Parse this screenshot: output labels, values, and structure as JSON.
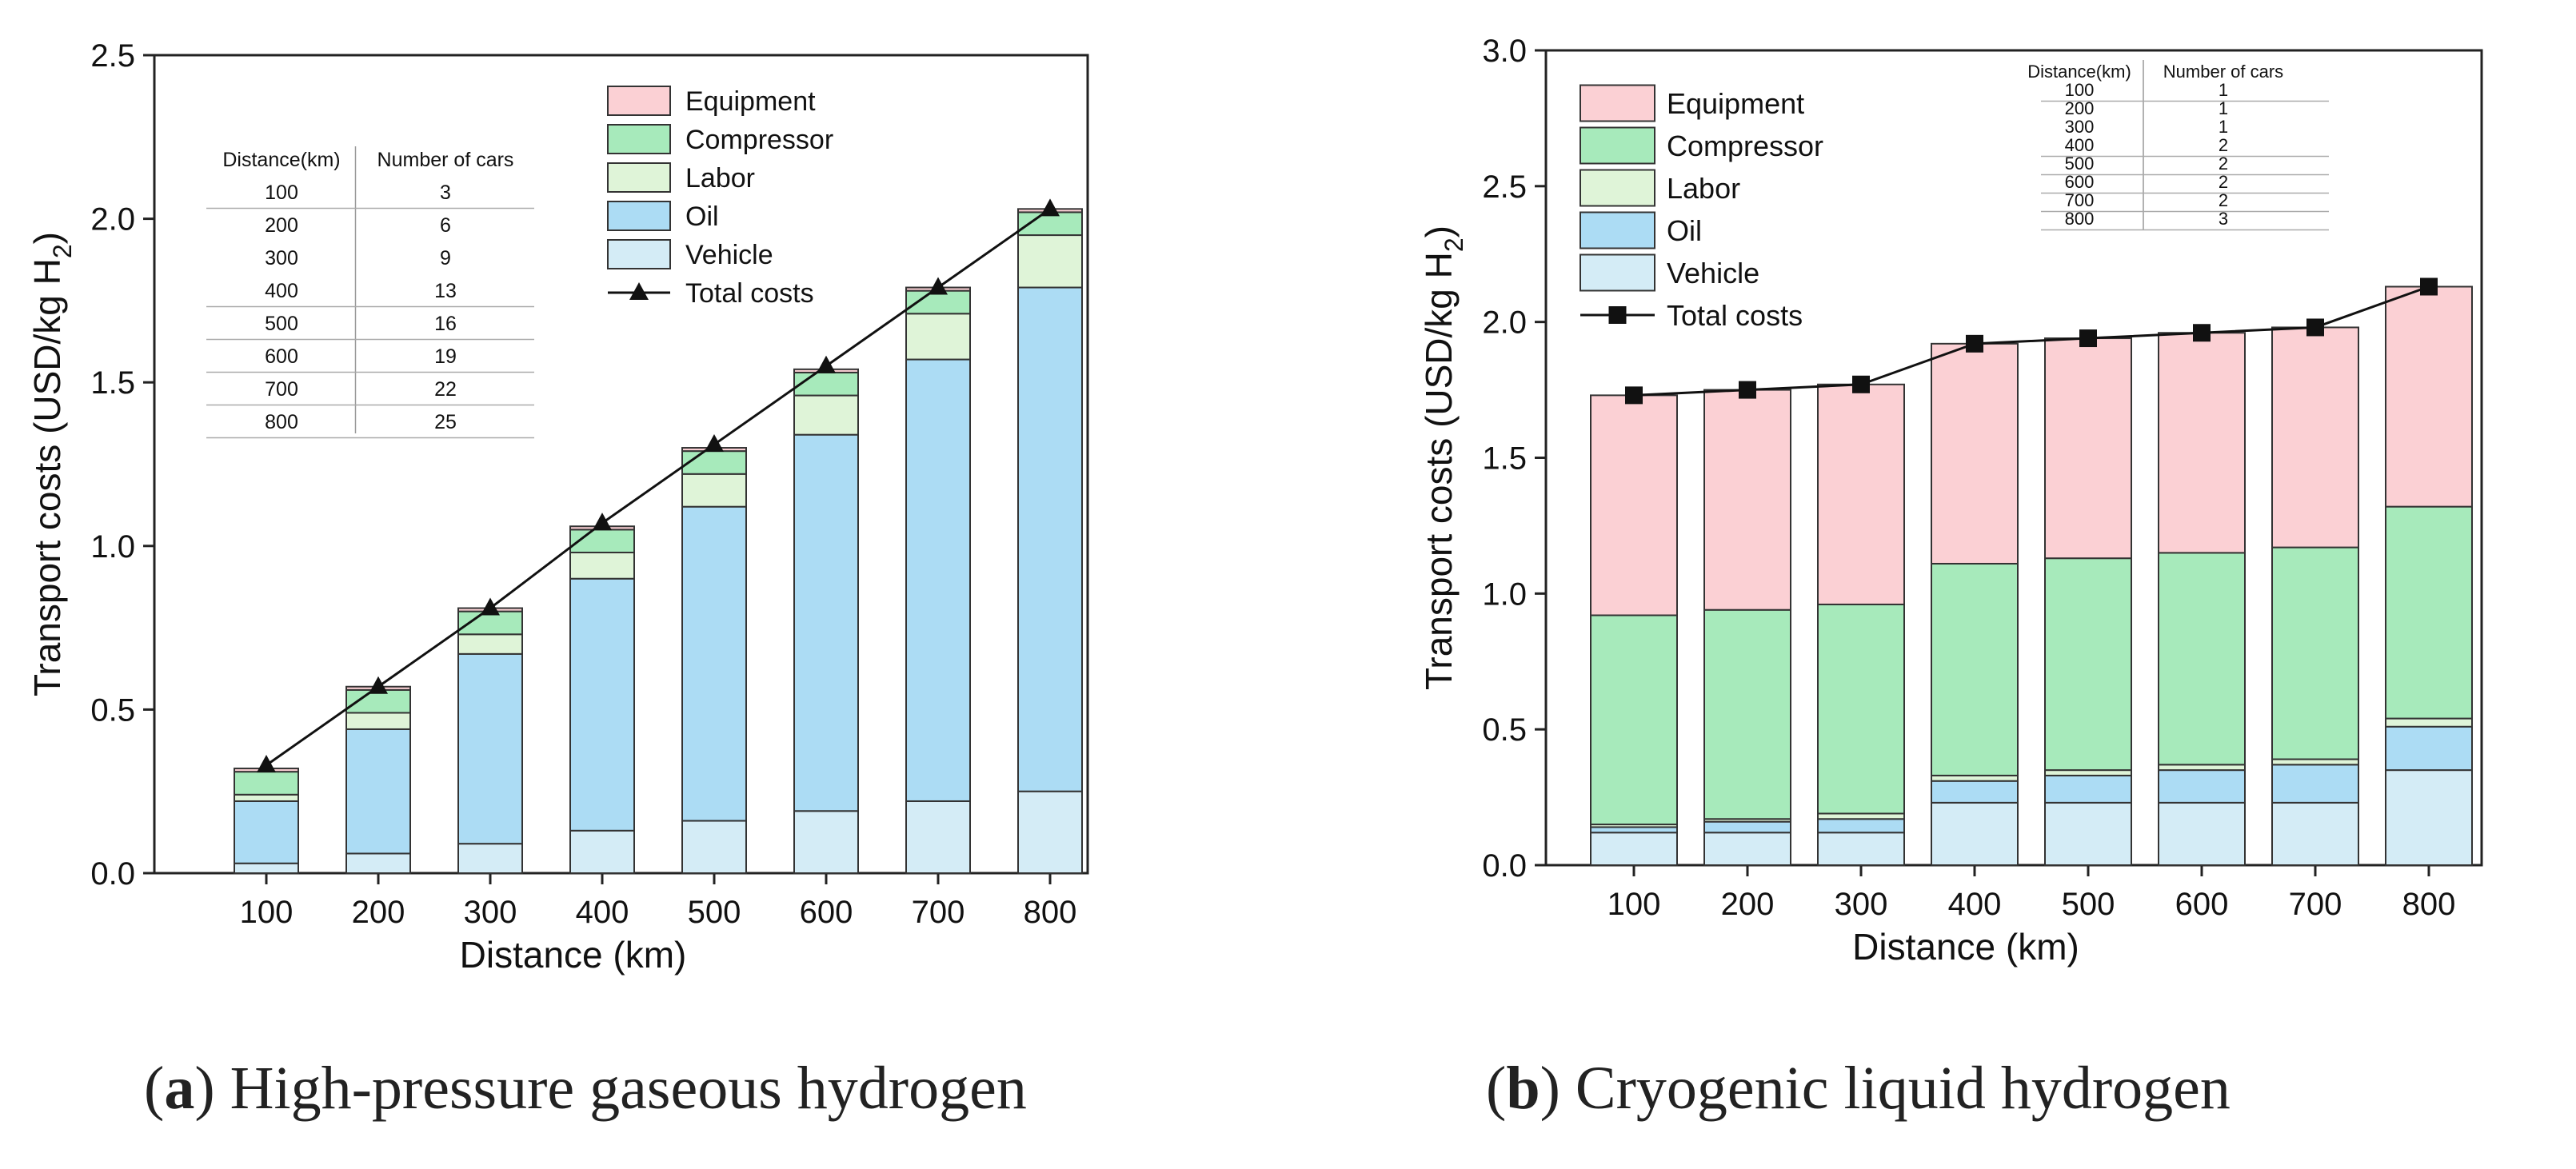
{
  "colors": {
    "equipment": "#fbd0d4",
    "compressor": "#a7eabb",
    "labor": "#dff4d8",
    "oil": "#acdcf4",
    "vehicle": "#d4ecf6",
    "line": "#111111",
    "axis": "#222222",
    "bar_edge": "#333333"
  },
  "chart_data": [
    {
      "id": "a",
      "type": "bar",
      "stacked": true,
      "title": "",
      "xlabel": "Distance (km)",
      "ylabel_main": "Transport costs (USD/kg H",
      "ylabel_sub": "2",
      "ylabel_close": ")",
      "ylim": [
        0,
        2.5
      ],
      "yticks": [
        "0.0",
        "0.5",
        "1.0",
        "1.5",
        "2.0",
        "2.5"
      ],
      "ytick_values": [
        0,
        0.5,
        1.0,
        1.5,
        2.0,
        2.5
      ],
      "categories": [
        "100",
        "200",
        "300",
        "400",
        "500",
        "600",
        "700",
        "800"
      ],
      "series": [
        {
          "name": "Vehicle",
          "key": "vehicle",
          "values": [
            0.03,
            0.06,
            0.09,
            0.13,
            0.16,
            0.19,
            0.22,
            0.25
          ]
        },
        {
          "name": "Oil",
          "key": "oil",
          "values": [
            0.19,
            0.38,
            0.58,
            0.77,
            0.96,
            1.15,
            1.35,
            1.54
          ]
        },
        {
          "name": "Labor",
          "key": "labor",
          "values": [
            0.02,
            0.05,
            0.06,
            0.08,
            0.1,
            0.12,
            0.14,
            0.16
          ]
        },
        {
          "name": "Compressor",
          "key": "compressor",
          "values": [
            0.07,
            0.07,
            0.07,
            0.07,
            0.07,
            0.07,
            0.07,
            0.07
          ]
        },
        {
          "name": "Equipment",
          "key": "equipment",
          "values": [
            0.01,
            0.01,
            0.01,
            0.01,
            0.01,
            0.01,
            0.01,
            0.01
          ]
        }
      ],
      "total": {
        "name": "Total costs",
        "marker": "triangle",
        "values": [
          0.33,
          0.57,
          0.81,
          1.07,
          1.31,
          1.55,
          1.79,
          2.03
        ]
      },
      "legend": {
        "placement": "top-right",
        "order": [
          "Equipment",
          "Compressor",
          "Labor",
          "Oil",
          "Vehicle",
          "Total costs"
        ]
      },
      "inset_table": {
        "headers": [
          "Distance(km)",
          "Number of cars"
        ],
        "rows": [
          [
            "100",
            "3"
          ],
          [
            "200",
            "6"
          ],
          [
            "300",
            "9"
          ],
          [
            "400",
            "13"
          ],
          [
            "500",
            "16"
          ],
          [
            "600",
            "19"
          ],
          [
            "700",
            "22"
          ],
          [
            "800",
            "25"
          ]
        ]
      }
    },
    {
      "id": "b",
      "type": "bar",
      "stacked": true,
      "title": "",
      "xlabel": "Distance (km)",
      "ylabel_main": "Transport costs (USD/kg H",
      "ylabel_sub": "2",
      "ylabel_close": ")",
      "ylim": [
        0,
        3.0
      ],
      "yticks": [
        "0.0",
        "0.5",
        "1.0",
        "1.5",
        "2.0",
        "2.5",
        "3.0"
      ],
      "ytick_values": [
        0,
        0.5,
        1.0,
        1.5,
        2.0,
        2.5,
        3.0
      ],
      "categories": [
        "100",
        "200",
        "300",
        "400",
        "500",
        "600",
        "700",
        "800"
      ],
      "series": [
        {
          "name": "Vehicle",
          "key": "vehicle",
          "values": [
            0.12,
            0.12,
            0.12,
            0.23,
            0.23,
            0.23,
            0.23,
            0.35
          ]
        },
        {
          "name": "Oil",
          "key": "oil",
          "values": [
            0.02,
            0.04,
            0.05,
            0.08,
            0.1,
            0.12,
            0.14,
            0.16
          ]
        },
        {
          "name": "Labor",
          "key": "labor",
          "values": [
            0.01,
            0.01,
            0.02,
            0.02,
            0.02,
            0.02,
            0.02,
            0.03
          ]
        },
        {
          "name": "Compressor",
          "key": "compressor",
          "values": [
            0.77,
            0.77,
            0.77,
            0.78,
            0.78,
            0.78,
            0.78,
            0.78
          ]
        },
        {
          "name": "Equipment",
          "key": "equipment",
          "values": [
            0.81,
            0.81,
            0.81,
            0.81,
            0.81,
            0.81,
            0.81,
            0.81
          ]
        }
      ],
      "total": {
        "name": "Total costs",
        "marker": "square",
        "values": [
          1.73,
          1.75,
          1.77,
          1.92,
          1.94,
          1.96,
          1.98,
          2.13
        ]
      },
      "legend": {
        "placement": "top-left",
        "order": [
          "Equipment",
          "Compressor",
          "Labor",
          "Oil",
          "Vehicle",
          "Total costs"
        ]
      },
      "inset_table": {
        "headers": [
          "Distance(km)",
          "Number of cars"
        ],
        "rows": [
          [
            "100",
            "1"
          ],
          [
            "200",
            "1"
          ],
          [
            "300",
            "1"
          ],
          [
            "400",
            "2"
          ],
          [
            "500",
            "2"
          ],
          [
            "600",
            "2"
          ],
          [
            "700",
            "2"
          ],
          [
            "800",
            "3"
          ]
        ]
      }
    }
  ],
  "captions": {
    "a": {
      "label": "a",
      "text": "High-pressure gaseous hydrogen"
    },
    "b": {
      "label": "b",
      "text": "Cryogenic liquid hydrogen"
    }
  }
}
